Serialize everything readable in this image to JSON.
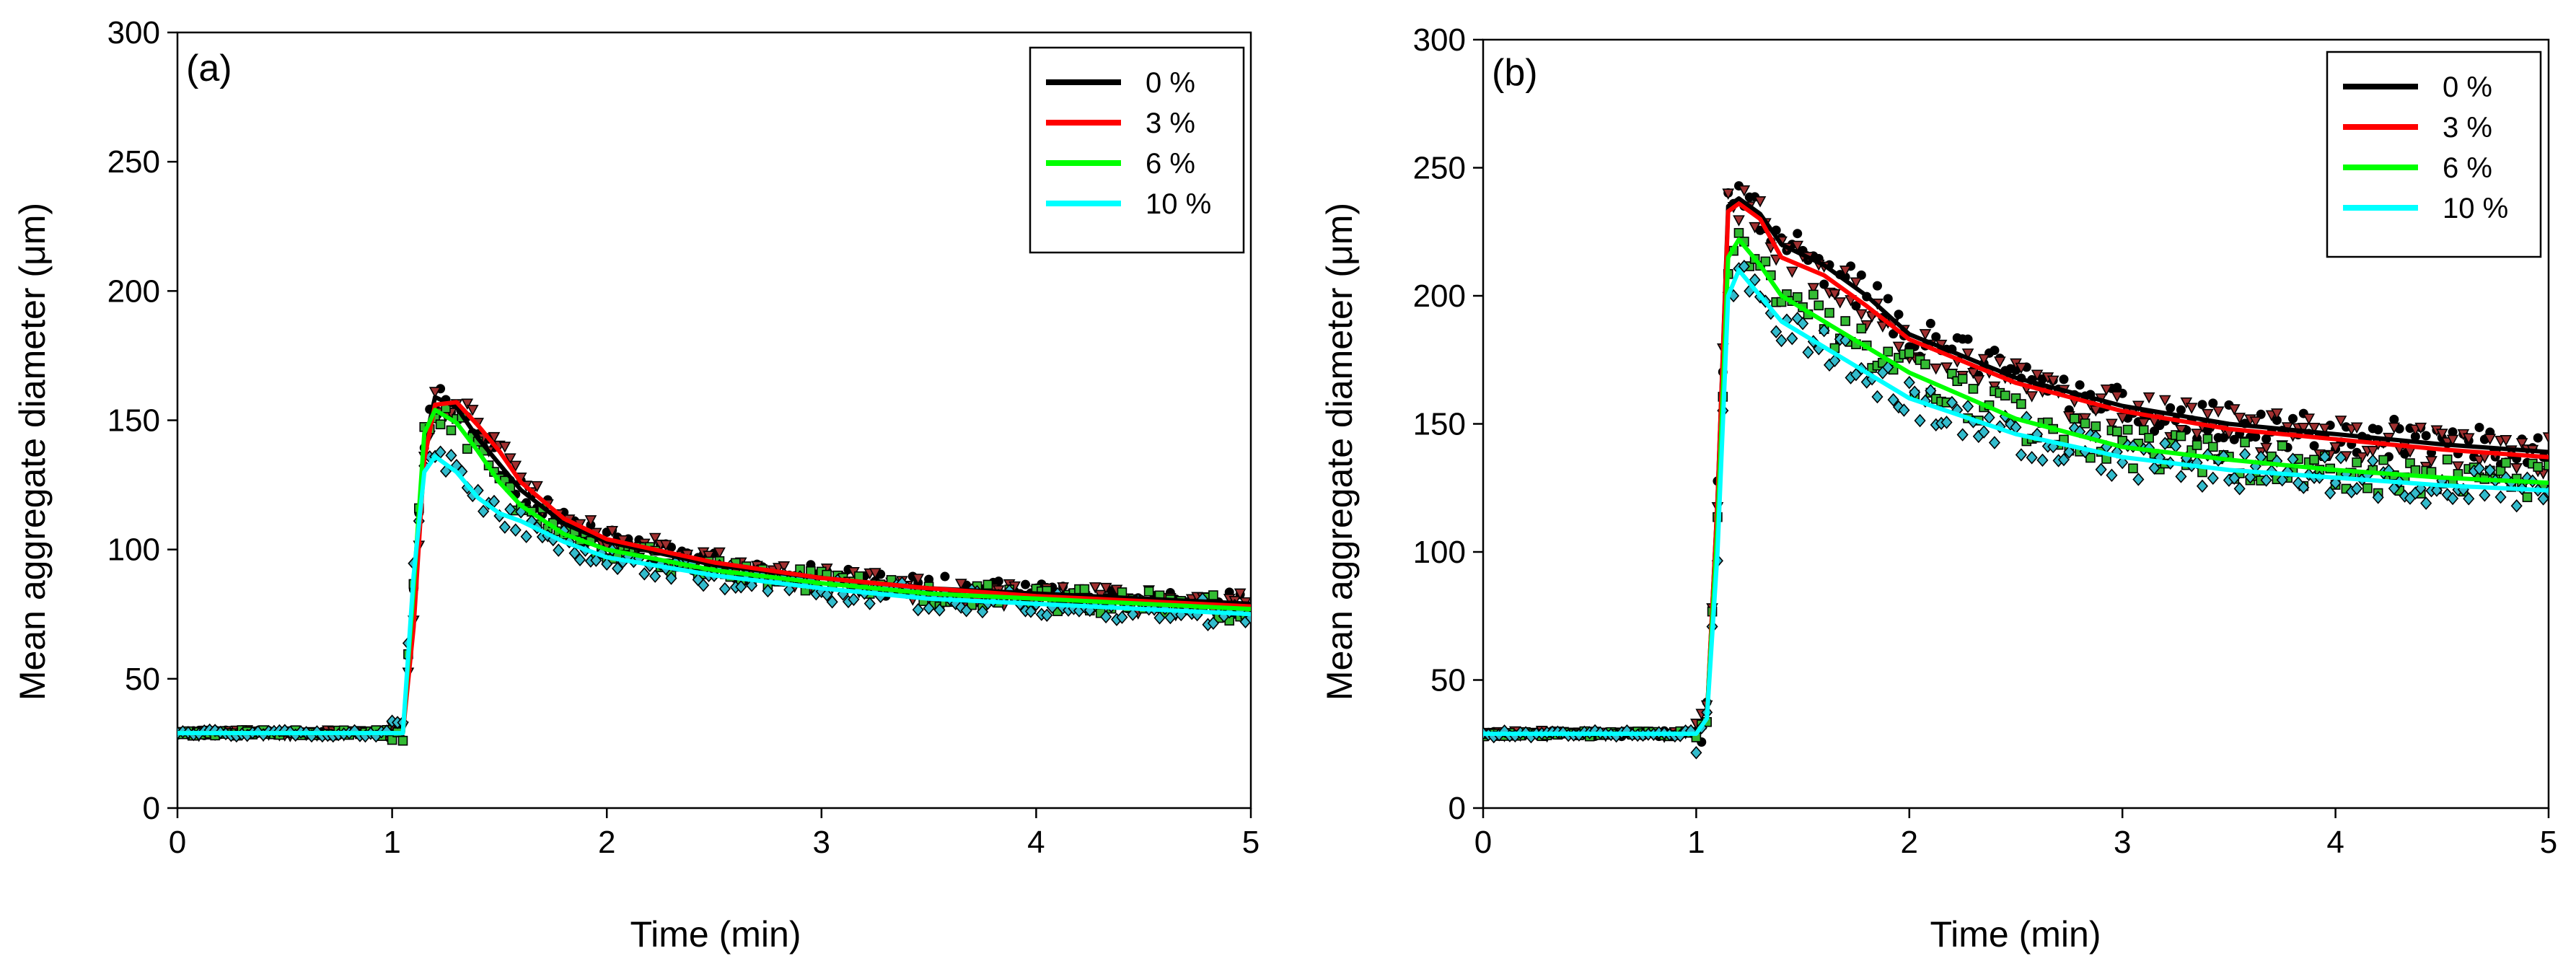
{
  "figure": {
    "series_meta": [
      {
        "name": "0 %",
        "color": "#000000",
        "marker": "circle",
        "marker_fill": "#000000"
      },
      {
        "name": "3 %",
        "color": "#ff0000",
        "marker": "triangle-down",
        "marker_fill": "#a03030"
      },
      {
        "name": "6 %",
        "color": "#00ff00",
        "marker": "square",
        "marker_fill": "#33bb33"
      },
      {
        "name": "10 %",
        "color": "#00ffff",
        "marker": "diamond",
        "marker_fill": "#33bbcc"
      }
    ]
  },
  "chart_data": [
    {
      "type": "line",
      "panel_label": "(a)",
      "title": "",
      "xlabel": "Time (min)",
      "ylabel_pre": "Mean aggregate diameter (",
      "ylabel_mu": "μ",
      "ylabel_post": "m)",
      "xlim": [
        0,
        5
      ],
      "ylim": [
        0,
        300
      ],
      "xticks": [
        0,
        1,
        2,
        3,
        4,
        5
      ],
      "yticks": [
        0,
        50,
        100,
        150,
        200,
        250,
        300
      ],
      "legend_position": "top-right",
      "series": [
        {
          "name": "0 %",
          "x": [
            0,
            1.0,
            1.05,
            1.1,
            1.15,
            1.2,
            1.3,
            1.4,
            1.5,
            1.6,
            1.8,
            2.0,
            2.5,
            3.0,
            3.5,
            4.0,
            4.5,
            5.0
          ],
          "y": [
            29,
            29,
            29,
            80,
            140,
            159,
            155,
            143,
            133,
            123,
            110,
            103,
            94,
            89,
            85,
            83,
            81,
            79
          ]
        },
        {
          "name": "3 %",
          "x": [
            0,
            1.0,
            1.05,
            1.1,
            1.15,
            1.2,
            1.3,
            1.4,
            1.5,
            1.6,
            1.8,
            2.0,
            2.5,
            3.0,
            3.5,
            4.0,
            4.5,
            5.0
          ],
          "y": [
            29,
            29,
            29,
            70,
            135,
            156,
            157,
            148,
            138,
            126,
            112,
            104,
            95,
            89,
            85,
            82,
            80,
            78
          ]
        },
        {
          "name": "6 %",
          "x": [
            0,
            1.0,
            1.05,
            1.1,
            1.15,
            1.2,
            1.3,
            1.4,
            1.5,
            1.6,
            1.8,
            2.0,
            2.5,
            3.0,
            3.5,
            4.0,
            4.5,
            5.0
          ],
          "y": [
            29,
            29,
            29,
            85,
            145,
            154,
            149,
            138,
            126,
            117,
            106,
            100,
            92,
            87,
            83,
            81,
            79,
            77
          ]
        },
        {
          "name": "10 %",
          "x": [
            0,
            1.0,
            1.05,
            1.1,
            1.15,
            1.2,
            1.3,
            1.4,
            1.5,
            1.6,
            1.8,
            2.0,
            2.5,
            3.0,
            3.5,
            4.0,
            4.5,
            5.0
          ],
          "y": [
            29,
            29,
            29,
            90,
            130,
            136,
            130,
            120,
            114,
            111,
            103,
            97,
            90,
            85,
            81,
            79,
            77,
            75
          ]
        }
      ]
    },
    {
      "type": "line",
      "panel_label": "(b)",
      "title": "",
      "xlabel": "Time (min)",
      "ylabel_pre": "Mean aggregate diameter (",
      "ylabel_mu": "μ",
      "ylabel_post": "m)",
      "xlim": [
        0,
        5
      ],
      "ylim": [
        0,
        300
      ],
      "xticks": [
        0,
        1,
        2,
        3,
        4,
        5
      ],
      "yticks": [
        0,
        50,
        100,
        150,
        200,
        250,
        300
      ],
      "legend_position": "top-right",
      "series": [
        {
          "name": "0 %",
          "x": [
            0,
            1.0,
            1.05,
            1.1,
            1.15,
            1.2,
            1.3,
            1.4,
            1.6,
            1.8,
            2.0,
            2.5,
            3.0,
            3.5,
            4.0,
            4.5,
            5.0
          ],
          "y": [
            29,
            29,
            35,
            120,
            235,
            238,
            232,
            220,
            212,
            200,
            185,
            168,
            157,
            150,
            146,
            142,
            139
          ]
        },
        {
          "name": "3 %",
          "x": [
            0,
            1.0,
            1.05,
            1.1,
            1.15,
            1.2,
            1.3,
            1.4,
            1.6,
            1.8,
            2.0,
            2.5,
            3.0,
            3.5,
            4.0,
            4.5,
            5.0
          ],
          "y": [
            29,
            29,
            35,
            120,
            233,
            236,
            230,
            215,
            208,
            196,
            183,
            166,
            155,
            148,
            144,
            140,
            137
          ]
        },
        {
          "name": "6 %",
          "x": [
            0,
            1.0,
            1.05,
            1.1,
            1.15,
            1.2,
            1.3,
            1.4,
            1.6,
            1.8,
            2.0,
            2.5,
            3.0,
            3.5,
            4.0,
            4.5,
            5.0
          ],
          "y": [
            29,
            29,
            35,
            110,
            215,
            222,
            212,
            200,
            190,
            180,
            170,
            152,
            141,
            136,
            132,
            129,
            127
          ]
        },
        {
          "name": "10 %",
          "x": [
            0,
            1.0,
            1.05,
            1.1,
            1.15,
            1.2,
            1.3,
            1.4,
            1.6,
            1.8,
            2.0,
            2.5,
            3.0,
            3.5,
            4.0,
            4.5,
            5.0
          ],
          "y": [
            29,
            29,
            35,
            100,
            200,
            210,
            200,
            190,
            180,
            170,
            160,
            146,
            137,
            132,
            129,
            126,
            124
          ]
        }
      ]
    }
  ]
}
